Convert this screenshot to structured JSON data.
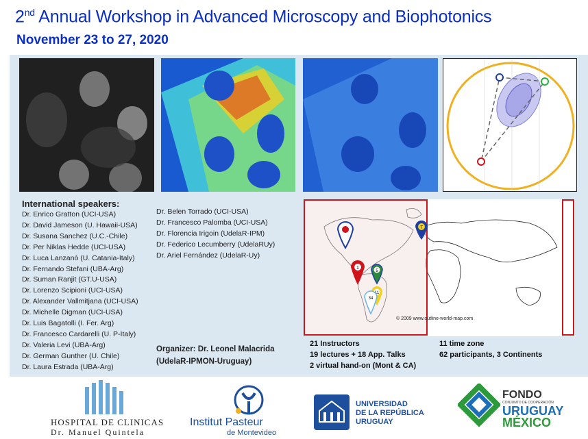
{
  "header": {
    "title_pre": "2",
    "title_sup": "nd",
    "title_post": " Annual Workshop in Advanced Microscopy and Biophotonics",
    "dates": "November 23 to 27, 2020"
  },
  "speakers": {
    "heading": "International speakers:",
    "column1": [
      "Dr. Enrico Gratton (UCI-USA)",
      "Dr. David Jameson (U. Hawaii-USA)",
      "Dr. Susana Sanchez (U.C.-Chile)",
      "Dr. Per Niklas Hedde (UCI-USA)",
      "Dr. Luca Lanzanò (U. Catania-Italy)",
      "Dr. Fernando Stefani (UBA-Arg)",
      "Dr. Suman Ranjit (GT.U-USA)",
      "Dr. Lorenzo Scipioni (UCI-USA)",
      "Dr. Alexander Vallmitjana (UCI-USA)",
      "Dr. Michelle Digman (UCI-USA)",
      "Dr. Luis Bagatolli (I. Fer. Arg)",
      "Dr. Francesco Cardarelli (U. P-Italy)",
      "Dr. Valeria Levi (UBA-Arg)",
      "Dr. German Gunther (U. Chile)",
      "Dr. Laura Estrada (UBA-Arg)"
    ],
    "column2": [
      "Dr. Belen Torrado (UCI-USA)",
      "Dr. Francesco Palomba (UCI-USA)",
      "Dr. Florencia Irigoin (UdelaR-IPM)",
      "Dr. Federico Lecumberry (UdelaRUy)",
      "Dr. Ariel Fernández (UdelaR-Uy)"
    ]
  },
  "organizer": {
    "line1": "Organizer: Dr. Leonel Malacrida",
    "line2": "(UdelaR-IPMON-Uruguay)"
  },
  "map": {
    "copyright": "© 2009 www.outline-world-map.com",
    "markers": [
      {
        "label": "1",
        "color": "#d0141c"
      },
      {
        "label": "5",
        "color": "#2a8a3a"
      },
      {
        "label": "7",
        "color": "#1e3fa0"
      },
      {
        "label": "11",
        "color": "#f0d020"
      },
      {
        "label": "34",
        "color": "#6ab4e8"
      },
      {
        "label": "",
        "color": "#d0141c"
      }
    ]
  },
  "stats": {
    "instructors": "21 Instructors",
    "lectures": "19 lectures + 18 App. Talks",
    "handson": "2 virtual hand-on (Mont & CA)",
    "timezones": "11 time zone",
    "participants": "62 participants,  3 Continents"
  },
  "logos": {
    "hospital_name": "HOSPITAL DE CLINICAS",
    "hospital_sub": "Dr. Manuel Quintela",
    "pasteur_name": "Institut Pasteur",
    "pasteur_sub": "de Montevideo",
    "udelar_1": "UNIVERSIDAD",
    "udelar_2": "DE LA REPÚBLICA",
    "udelar_3": "URUGUAY",
    "fondo_1": "FONDO",
    "fondo_2": "CONJUNTO DE COOPERACIÓN",
    "fondo_3": "URUGUAY",
    "fondo_4": "MÉXICO"
  },
  "colors": {
    "title_blue": "#0a2fc2",
    "panel_bg": "#dbe8f2",
    "map_box_red": "#d0141c"
  }
}
